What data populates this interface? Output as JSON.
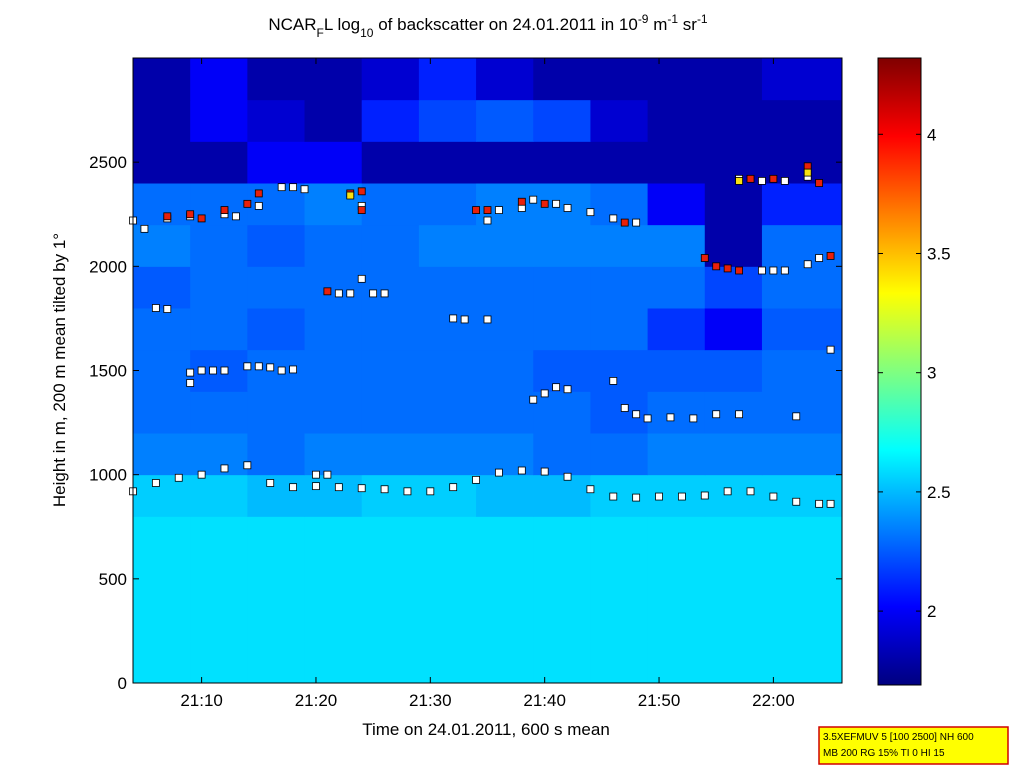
{
  "chart_data": {
    "type": "heatmap",
    "title": [
      {
        "text": "NCAR"
      },
      {
        "text": "F",
        "shift": "sub"
      },
      {
        "text": "L log"
      },
      {
        "text": "10",
        "shift": "sub"
      },
      {
        "text": " of backscatter on 24.01.2011 in 10"
      },
      {
        "text": "-9",
        "shift": "super"
      },
      {
        "text": " m"
      },
      {
        "text": "-1",
        "shift": "super"
      },
      {
        "text": " sr"
      },
      {
        "text": "-1",
        "shift": "super"
      }
    ],
    "xlabel": "Time on 24.01.2011, 600 s mean",
    "ylabel": "Height in m, 200 m mean tilted by 1°",
    "xlim": [
      "21:04",
      "22:06"
    ],
    "xticks": [
      "21:10",
      "21:20",
      "21:30",
      "21:40",
      "21:50",
      "22:00"
    ],
    "ylim": [
      0,
      3000
    ],
    "yticks": [
      0,
      500,
      1000,
      1500,
      2000,
      2500
    ],
    "x_edges": [
      "21:04",
      "21:09",
      "21:14",
      "21:19",
      "21:24",
      "21:29",
      "21:34",
      "21:39",
      "21:44",
      "21:49",
      "21:54",
      "21:59",
      "22:06"
    ],
    "y_edges": [
      0,
      200,
      400,
      600,
      800,
      1000,
      1200,
      1400,
      1600,
      1800,
      2000,
      2200,
      2400,
      2600,
      2800,
      3000
    ],
    "z": [
      [
        2.6,
        2.6,
        2.6,
        2.6,
        2.6,
        2.6,
        2.6,
        2.6,
        2.6,
        2.6,
        2.6,
        2.6
      ],
      [
        2.6,
        2.6,
        2.6,
        2.6,
        2.6,
        2.6,
        2.6,
        2.6,
        2.6,
        2.6,
        2.6,
        2.6
      ],
      [
        2.6,
        2.6,
        2.6,
        2.6,
        2.6,
        2.6,
        2.6,
        2.6,
        2.6,
        2.6,
        2.6,
        2.6
      ],
      [
        2.6,
        2.6,
        2.6,
        2.6,
        2.6,
        2.6,
        2.6,
        2.6,
        2.6,
        2.6,
        2.6,
        2.6
      ],
      [
        2.55,
        2.55,
        2.5,
        2.5,
        2.55,
        2.55,
        2.5,
        2.5,
        2.55,
        2.55,
        2.55,
        2.55
      ],
      [
        2.35,
        2.35,
        2.3,
        2.35,
        2.35,
        2.35,
        2.35,
        2.3,
        2.3,
        2.35,
        2.35,
        2.35
      ],
      [
        2.3,
        2.3,
        2.3,
        2.3,
        2.3,
        2.3,
        2.3,
        2.3,
        2.25,
        2.3,
        2.3,
        2.3
      ],
      [
        2.3,
        2.25,
        2.3,
        2.3,
        2.3,
        2.3,
        2.3,
        2.25,
        2.25,
        2.25,
        2.25,
        2.3
      ],
      [
        2.3,
        2.3,
        2.25,
        2.3,
        2.3,
        2.3,
        2.3,
        2.3,
        2.3,
        2.15,
        2.0,
        2.25
      ],
      [
        2.25,
        2.3,
        2.3,
        2.3,
        2.3,
        2.3,
        2.3,
        2.3,
        2.3,
        2.3,
        2.2,
        2.3
      ],
      [
        2.35,
        2.3,
        2.25,
        2.3,
        2.3,
        2.35,
        2.35,
        2.35,
        2.35,
        2.35,
        1.8,
        2.3
      ],
      [
        2.3,
        2.3,
        2.3,
        2.35,
        2.3,
        2.3,
        2.35,
        2.35,
        2.3,
        2.0,
        1.8,
        2.1
      ],
      [
        1.8,
        1.8,
        2.0,
        2.0,
        1.8,
        1.8,
        1.8,
        1.8,
        1.8,
        1.8,
        1.8,
        1.8
      ],
      [
        1.8,
        2.0,
        1.9,
        1.8,
        2.1,
        2.2,
        2.25,
        2.2,
        1.9,
        1.8,
        1.8,
        1.8
      ],
      [
        1.8,
        2.0,
        1.8,
        1.8,
        1.9,
        2.1,
        1.9,
        1.8,
        1.8,
        1.8,
        1.8,
        1.9
      ]
    ],
    "colorbar": {
      "lim": [
        1.69,
        4.32
      ],
      "ticks": [
        2,
        2.5,
        3,
        3.5,
        4
      ]
    },
    "markers": [
      {
        "color": "#ffffff",
        "x": [
          "21:04",
          "21:06",
          "21:08",
          "21:10",
          "21:12",
          "21:14",
          "21:16",
          "21:18",
          "21:20",
          "21:22",
          "21:24",
          "21:26",
          "21:28",
          "21:30",
          "21:32",
          "21:34",
          "21:36",
          "21:38",
          "21:40",
          "21:42",
          "21:44",
          "21:46",
          "21:48",
          "21:50",
          "21:52",
          "21:54",
          "21:56",
          "21:58",
          "22:00",
          "22:02",
          "22:04",
          "22:05",
          "21:06",
          "21:07",
          "21:09",
          "21:10",
          "21:11",
          "21:12",
          "21:09",
          "21:14",
          "21:15",
          "21:16",
          "21:17",
          "21:18",
          "21:20",
          "21:21",
          "21:22",
          "21:23",
          "21:24",
          "21:25",
          "21:26",
          "21:32",
          "21:33",
          "21:35",
          "21:39",
          "21:40",
          "21:41",
          "21:42",
          "21:46",
          "21:47",
          "21:48",
          "21:49",
          "21:51",
          "21:53",
          "21:55",
          "21:57",
          "21:59",
          "22:00",
          "22:01",
          "22:03",
          "22:04",
          "22:05",
          "22:02",
          "21:04",
          "21:05",
          "21:07",
          "21:09",
          "21:12",
          "21:13",
          "21:15",
          "21:17",
          "21:18",
          "21:19",
          "21:24",
          "21:35",
          "21:36",
          "21:38",
          "21:39",
          "21:41",
          "21:42",
          "21:44",
          "21:46",
          "21:48",
          "21:57",
          "21:59",
          "22:01",
          "22:03"
        ],
        "y": [
          920,
          960,
          985,
          1000,
          1030,
          1045,
          960,
          940,
          945,
          940,
          935,
          930,
          920,
          920,
          940,
          975,
          1010,
          1020,
          1015,
          990,
          930,
          895,
          890,
          895,
          895,
          900,
          920,
          920,
          895,
          870,
          860,
          860,
          1800,
          1795,
          1490,
          1500,
          1500,
          1500,
          1440,
          1520,
          1520,
          1515,
          1500,
          1505,
          1000,
          1000,
          1870,
          1870,
          1940,
          1870,
          1870,
          1750,
          1745,
          1745,
          1360,
          1390,
          1420,
          1410,
          1450,
          1320,
          1290,
          1270,
          1275,
          1270,
          1290,
          1290,
          1980,
          1980,
          1980,
          2010,
          2040,
          1600,
          1280,
          2220,
          2180,
          2230,
          2240,
          2250,
          2240,
          2290,
          2380,
          2380,
          2370,
          2290,
          2220,
          2270,
          2280,
          2320,
          2300,
          2280,
          2260,
          2230,
          2210,
          2420,
          2410,
          2410,
          2430
        ]
      },
      {
        "color": "#e8200a",
        "x": [
          "21:07",
          "21:09",
          "21:10",
          "21:12",
          "21:14",
          "21:15",
          "21:21",
          "21:23",
          "21:24",
          "21:24",
          "21:34",
          "21:35",
          "21:38",
          "21:40",
          "21:47",
          "21:54",
          "21:55",
          "21:56",
          "21:57",
          "21:58",
          "22:00",
          "22:03",
          "22:04",
          "22:05"
        ],
        "y": [
          2240,
          2250,
          2230,
          2270,
          2300,
          2350,
          1880,
          2350,
          2360,
          2270,
          2270,
          2270,
          2310,
          2300,
          2210,
          2040,
          2000,
          1990,
          1980,
          2420,
          2420,
          2480,
          2400,
          2050
        ]
      },
      {
        "color": "#f8e010",
        "x": [
          "21:23",
          "21:57",
          "22:03"
        ],
        "y": [
          2340,
          2410,
          2450
        ]
      }
    ],
    "info_box": [
      "3.5XEFMUV 5 [100 2500] NH 600",
      "MB 200 RG 15% TI 0 HI 15"
    ]
  }
}
